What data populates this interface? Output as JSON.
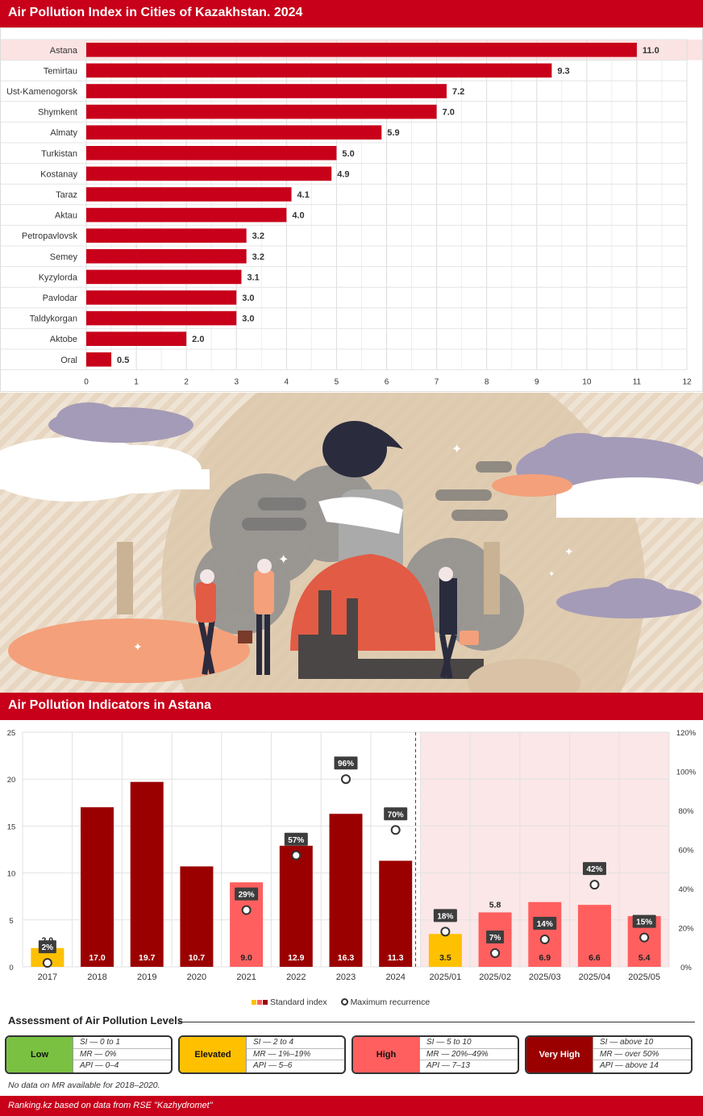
{
  "title1": "Air Pollution Index in Cities of Kazakhstan. 2024",
  "title2": "Air Pollution Indicators in Astana",
  "chart_data": [
    {
      "type": "bar",
      "orientation": "horizontal",
      "categories": [
        "Astana",
        "Temirtau",
        "Ust-Kamenogorsk",
        "Shymkent",
        "Almaty",
        "Turkistan",
        "Kostanay",
        "Taraz",
        "Aktau",
        "Petropavlovsk",
        "Semey",
        "Kyzylorda",
        "Pavlodar",
        "Taldykorgan",
        "Aktobe",
        "Oral"
      ],
      "values": [
        11.0,
        9.3,
        7.2,
        7.0,
        5.9,
        5.0,
        4.9,
        4.1,
        4.0,
        3.2,
        3.2,
        3.1,
        3.0,
        3.0,
        2.0,
        0.5
      ],
      "value_labels": [
        "11.0",
        "9.3",
        "7.2",
        "7.0",
        "5.9",
        "5.0",
        "4.9",
        "4.1",
        "4.0",
        "3.2",
        "3.2",
        "3.1",
        "3.0",
        "3.0",
        "2.0",
        "0.5"
      ],
      "xlim": [
        0,
        12
      ],
      "x_ticks": [
        "0",
        "1",
        "2",
        "3",
        "4",
        "5",
        "6",
        "7",
        "8",
        "9",
        "10",
        "11",
        "12"
      ],
      "highlight": "Astana",
      "grid": true,
      "bar_color": "#c8001a"
    },
    {
      "type": "bar",
      "categories": [
        "2017",
        "2018",
        "2019",
        "2020",
        "2021",
        "2022",
        "2023",
        "2024",
        "2025/01",
        "2025/02",
        "2025/03",
        "2025/04",
        "2025/05"
      ],
      "series": [
        {
          "name": "Standard index",
          "values": [
            2.0,
            17.0,
            19.7,
            10.7,
            9.0,
            12.9,
            16.3,
            11.3,
            3.5,
            5.8,
            6.9,
            6.6,
            5.4
          ],
          "value_labels": [
            "2.0",
            "17.0",
            "19.7",
            "10.7",
            "9.0",
            "12.9",
            "16.3",
            "11.3",
            "3.5",
            "5.8",
            "6.9",
            "6.6",
            "5.4"
          ],
          "levels": [
            "elevated",
            "veryhigh",
            "veryhigh",
            "veryhigh",
            "high",
            "veryhigh",
            "veryhigh",
            "veryhigh",
            "elevated",
            "high",
            "high",
            "high",
            "high"
          ]
        },
        {
          "name": "Maximum recurrence",
          "axis": "right",
          "values": [
            2,
            null,
            null,
            null,
            29,
            57,
            96,
            70,
            18,
            7,
            14,
            42,
            15
          ],
          "value_labels": [
            "2%",
            "",
            "",
            "",
            "29%",
            "57%",
            "96%",
            "70%",
            "18%",
            "7%",
            "14%",
            "42%",
            "15%"
          ]
        }
      ],
      "ylim_left": [
        0,
        25
      ],
      "y_ticks_left": [
        "0",
        "5",
        "10",
        "15",
        "20",
        "25"
      ],
      "ylim_right": [
        0,
        120
      ],
      "y_ticks_right": [
        "0%",
        "20%",
        "40%",
        "60%",
        "80%",
        "100%",
        "120%"
      ],
      "shaded_from": "2025/01",
      "grid": true,
      "legend_position": "bottom"
    }
  ],
  "colors": {
    "low": "#7ac142",
    "elevated": "#ffc000",
    "high": "#ff5f5f",
    "veryhigh": "#9b0000",
    "accent": "#c8001a"
  },
  "legend": {
    "standard_index": "Standard index",
    "max_recurrence": "Maximum recurrence"
  },
  "assessment": {
    "title": "Assessment of Air Pollution Levels",
    "levels": [
      {
        "name": "Low",
        "rows": [
          "SI — 0 to 1",
          "MR — 0%",
          "API — 0–4"
        ]
      },
      {
        "name": "Elevated",
        "rows": [
          "SI — 2 to 4",
          "MR — 1%–19%",
          "API — 5–6"
        ]
      },
      {
        "name": "High",
        "rows": [
          "SI — 5 to 10",
          "MR — 20%–49%",
          "API — 7–13"
        ]
      },
      {
        "name": "Very High",
        "rows": [
          "SI — above 10",
          "MR — over 50%",
          "API — above 14"
        ]
      }
    ],
    "note": "No data on MR available for 2018–2020."
  },
  "footer": "Ranking.kz based on data from RSE \"Kazhydromet\""
}
